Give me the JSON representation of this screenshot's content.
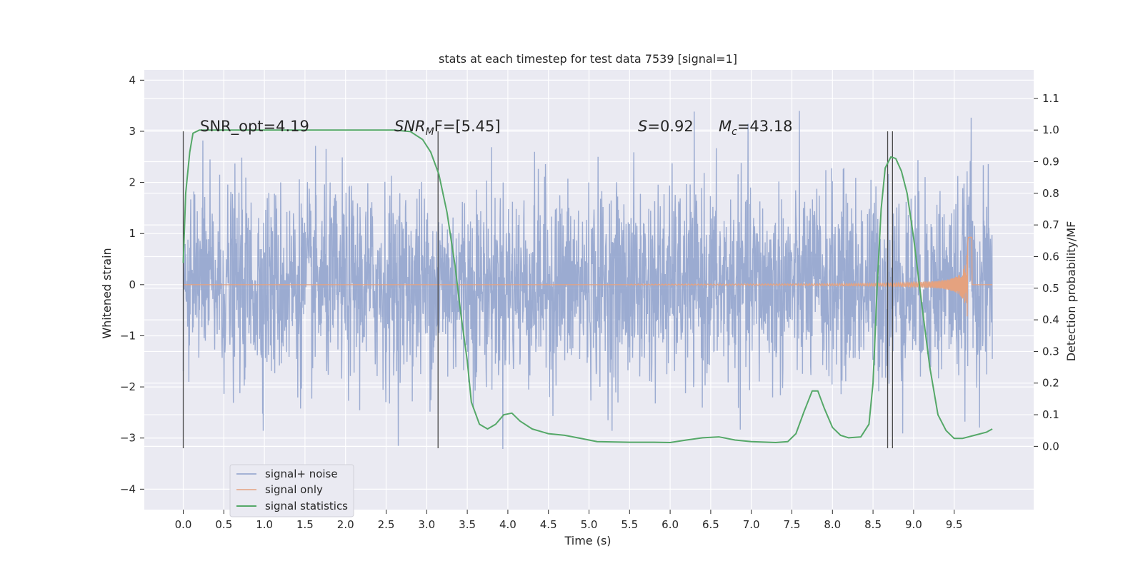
{
  "chart_data": {
    "type": "line",
    "title": "stats at each timestep for test data 7539 [signal=1]",
    "xlabel": "Time (s)",
    "ylabel_left": "Whitened strain",
    "ylabel_right": "Detection probability/MF",
    "xlim": [
      -0.48,
      10.48
    ],
    "ylim_left": [
      -4.4,
      4.2
    ],
    "ylim_right": [
      -0.2,
      1.19
    ],
    "grid": true,
    "legend_position": "lower-left",
    "x_ticks": [
      "0.0",
      "0.5",
      "1.0",
      "1.5",
      "2.0",
      "2.5",
      "3.0",
      "3.5",
      "4.0",
      "4.5",
      "5.0",
      "5.5",
      "6.0",
      "6.5",
      "7.0",
      "7.5",
      "8.0",
      "8.5",
      "9.0",
      "9.5"
    ],
    "y_ticks_left": [
      "4",
      "3",
      "2",
      "1",
      "0",
      "−1",
      "−2",
      "−3",
      "−4"
    ],
    "y_ticks_right": [
      "1.1",
      "1.0",
      "0.9",
      "0.8",
      "0.7",
      "0.6",
      "0.5",
      "0.4",
      "0.3",
      "0.2",
      "0.1",
      "0.0"
    ],
    "annotations": {
      "snr_opt": "SNR_opt=4.19",
      "snr_mf_main": "SNR",
      "snr_mf_sub": "M",
      "snr_mf_tail": "F=[5.45]",
      "s_main": "S",
      "s_tail": "=0.92",
      "mc_main": "M",
      "mc_sub": "c",
      "mc_tail": "=43.18"
    },
    "vertical_markers": [
      0.0,
      3.14,
      8.68,
      8.74
    ],
    "series": [
      {
        "name": "signal+ noise",
        "color": "#8da0cb",
        "description_of_values": "dense whitened noise, mostly within ±2, extremes to ±4, t from 0 to 10 s"
      },
      {
        "name": "signal only",
        "color": "#e5a27f",
        "chirp": {
          "start_time": 5.5,
          "merge_time": 9.67,
          "peak_amplitude": 1.1,
          "end_time": 9.72
        }
      },
      {
        "name": "signal statistics",
        "color": "#55a868",
        "x": [
          0.0,
          0.03,
          0.08,
          0.12,
          0.2,
          0.4,
          1.0,
          2.0,
          2.6,
          2.8,
          2.95,
          3.05,
          3.15,
          3.25,
          3.35,
          3.42,
          3.5,
          3.55,
          3.65,
          3.75,
          3.85,
          3.95,
          4.05,
          4.15,
          4.3,
          4.5,
          4.7,
          4.9,
          5.1,
          5.5,
          5.8,
          6.0,
          6.2,
          6.4,
          6.6,
          6.8,
          7.0,
          7.3,
          7.45,
          7.55,
          7.65,
          7.75,
          7.82,
          7.9,
          8.0,
          8.1,
          8.2,
          8.35,
          8.45,
          8.5,
          8.55,
          8.6,
          8.65,
          8.72,
          8.78,
          8.85,
          8.92,
          9.0,
          9.1,
          9.2,
          9.3,
          9.4,
          9.5,
          9.6,
          9.75,
          9.9,
          9.97
        ],
        "values": [
          0.58,
          0.8,
          0.93,
          0.99,
          1.0,
          1.0,
          1.0,
          1.0,
          1.0,
          0.995,
          0.97,
          0.93,
          0.86,
          0.74,
          0.57,
          0.42,
          0.27,
          0.14,
          0.07,
          0.055,
          0.07,
          0.1,
          0.105,
          0.08,
          0.055,
          0.04,
          0.035,
          0.025,
          0.015,
          0.013,
          0.013,
          0.012,
          0.02,
          0.027,
          0.03,
          0.02,
          0.015,
          0.012,
          0.015,
          0.04,
          0.11,
          0.175,
          0.175,
          0.12,
          0.06,
          0.035,
          0.027,
          0.03,
          0.07,
          0.2,
          0.5,
          0.75,
          0.88,
          0.915,
          0.91,
          0.87,
          0.8,
          0.66,
          0.45,
          0.25,
          0.1,
          0.05,
          0.025,
          0.025,
          0.035,
          0.045,
          0.055
        ]
      }
    ]
  }
}
